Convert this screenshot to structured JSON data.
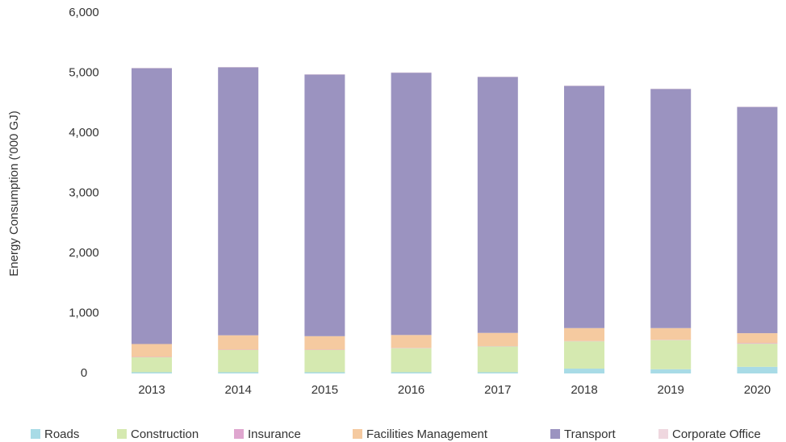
{
  "chart_data": {
    "type": "stacked_bar",
    "y_label": "Energy Consumption ('000 GJ)",
    "categories": [
      "2013",
      "2014",
      "2015",
      "2016",
      "2017",
      "2018",
      "2019",
      "2020"
    ],
    "series": [
      {
        "name": "Roads",
        "color": "#a8dbe6",
        "values": [
          20,
          20,
          20,
          20,
          20,
          80,
          70,
          110
        ]
      },
      {
        "name": "Construction",
        "color": "#d5e9b0",
        "values": [
          250,
          370,
          370,
          400,
          430,
          455,
          485,
          385
        ]
      },
      {
        "name": "Insurance",
        "color": "#dfa6cf",
        "values": [
          5,
          5,
          5,
          5,
          5,
          5,
          5,
          10
        ]
      },
      {
        "name": "Facilities Management",
        "color": "#f5caa0",
        "values": [
          215,
          240,
          225,
          215,
          220,
          215,
          195,
          165
        ]
      },
      {
        "name": "Transport",
        "color": "#9b93c0",
        "values": [
          4590,
          4460,
          4355,
          4365,
          4260,
          4030,
          3980,
          3765
        ]
      },
      {
        "name": "Corporate Office",
        "color": "#efd7df",
        "values": [
          5,
          5,
          5,
          5,
          5,
          5,
          5,
          5
        ]
      }
    ],
    "ylim": [
      0,
      6000
    ],
    "yticks": [
      0,
      {
        "value": 1000,
        "label": "1,000"
      },
      {
        "value": 2000,
        "label": "2,000"
      },
      {
        "value": 3000,
        "label": "3,000"
      },
      {
        "value": 4000,
        "label": "4,000"
      },
      {
        "value": 5000,
        "label": "5,000"
      },
      {
        "value": 6000,
        "label": "6,000"
      }
    ],
    "grid": false,
    "legend": "bottom"
  }
}
